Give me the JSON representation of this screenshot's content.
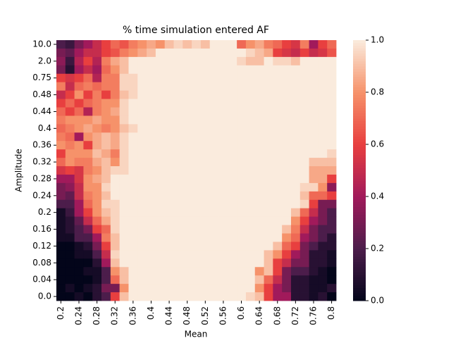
{
  "chart_data": {
    "type": "heatmap",
    "title": "% time simulation entered AF",
    "x_label": "Mean",
    "y_label": "Amplitude",
    "x": [
      "0.2",
      null,
      "0.24",
      null,
      "0.28",
      null,
      "0.32",
      null,
      "0.36",
      null,
      "0.4",
      null,
      "0.44",
      null,
      "0.48",
      null,
      "0.52",
      null,
      "0.56",
      null,
      "0.6",
      null,
      "0.64",
      null,
      "0.68",
      null,
      "0.72",
      null,
      "0.76",
      null,
      "0.8"
    ],
    "y": [
      "10.0",
      null,
      "2.0",
      null,
      "0.75",
      null,
      "0.48",
      null,
      "0.44",
      null,
      "0.4",
      null,
      "0.36",
      null,
      "0.32",
      null,
      "0.28",
      null,
      "0.24",
      null,
      "0.2",
      null,
      "0.16",
      null,
      "0.12",
      null,
      "0.08",
      null,
      "0.04",
      null,
      "0.0"
    ],
    "colors": [
      "#03051a",
      "#4c1d4b",
      "#a11a5b",
      "#e83f3f",
      "#f6926a",
      "#faebdd"
    ],
    "clim": [
      0,
      1
    ],
    "cticks": [
      {
        "value": 0,
        "label": "0.0"
      },
      0.2,
      0.4,
      0.6,
      0.8,
      {
        "value": 1,
        "label": "1.0"
      }
    ],
    "z": [
      [
        0.2,
        0.15,
        0.3,
        0.4,
        0.5,
        0.6,
        0.7,
        0.65,
        0.75,
        0.8,
        0.85,
        0.8,
        0.9,
        0.95,
        0.9,
        0.95,
        0.9,
        1,
        1,
        1,
        0.7,
        0.8,
        0.85,
        0.75,
        0.7,
        0.6,
        0.55,
        0.75,
        0.4,
        0.6,
        0.7
      ],
      [
        0.3,
        0.25,
        0.4,
        0.5,
        0.5,
        0.6,
        0.65,
        0.75,
        0.8,
        0.85,
        0.9,
        1,
        1,
        1,
        1,
        1,
        1,
        1,
        1,
        1,
        1,
        0.95,
        0.9,
        0.85,
        0.6,
        0.55,
        0.5,
        0.6,
        0.5,
        0.55,
        0.65
      ],
      [
        0.35,
        0.15,
        0.45,
        0.6,
        0.45,
        0.75,
        0.85,
        0.9,
        1,
        1,
        1,
        1,
        1,
        1,
        1,
        1,
        1,
        1,
        1,
        1,
        0.95,
        0.9,
        0.9,
        1,
        0.95,
        0.95,
        0.9,
        1,
        1,
        1,
        1
      ],
      [
        0.3,
        0.1,
        0.4,
        0.5,
        0.4,
        0.7,
        0.8,
        0.9,
        1,
        1,
        1,
        1,
        1,
        1,
        1,
        1,
        1,
        1,
        1,
        1,
        1,
        1,
        1,
        1,
        1,
        1,
        1,
        1,
        1,
        1,
        1
      ],
      [
        0.6,
        0.55,
        0.6,
        0.7,
        0.45,
        0.75,
        0.75,
        0.95,
        0.95,
        1,
        1,
        1,
        1,
        1,
        1,
        1,
        1,
        1,
        1,
        1,
        1,
        1,
        1,
        1,
        1,
        1,
        1,
        1,
        1,
        1,
        1
      ],
      [
        0.75,
        0.5,
        0.7,
        0.75,
        0.7,
        0.75,
        0.75,
        0.95,
        0.95,
        1,
        1,
        1,
        1,
        1,
        1,
        1,
        1,
        1,
        1,
        1,
        1,
        1,
        1,
        1,
        1,
        1,
        1,
        1,
        1,
        1,
        1
      ],
      [
        0.5,
        0.6,
        0.8,
        0.6,
        0.75,
        0.6,
        0.75,
        0.9,
        0.95,
        1,
        1,
        1,
        1,
        1,
        1,
        1,
        1,
        1,
        1,
        1,
        1,
        1,
        1,
        1,
        1,
        1,
        1,
        1,
        1,
        1,
        1
      ],
      [
        0.6,
        0.7,
        0.6,
        0.7,
        0.75,
        0.8,
        0.8,
        0.95,
        1,
        1,
        1,
        1,
        1,
        1,
        1,
        1,
        1,
        1,
        1,
        1,
        1,
        1,
        1,
        1,
        1,
        1,
        1,
        1,
        1,
        1,
        1
      ],
      [
        0.7,
        0.6,
        0.7,
        0.45,
        0.75,
        0.8,
        0.85,
        0.95,
        1,
        1,
        1,
        1,
        1,
        1,
        1,
        1,
        1,
        1,
        1,
        1,
        1,
        1,
        1,
        1,
        1,
        1,
        1,
        1,
        1,
        1,
        1
      ],
      [
        0.75,
        0.8,
        0.8,
        0.8,
        0.85,
        0.8,
        0.8,
        0.95,
        1,
        1,
        1,
        1,
        1,
        1,
        1,
        1,
        1,
        1,
        1,
        1,
        1,
        1,
        1,
        1,
        1,
        1,
        1,
        1,
        1,
        1,
        1
      ],
      [
        0.7,
        0.75,
        0.8,
        0.85,
        0.8,
        0.75,
        0.8,
        0.9,
        0.95,
        1,
        1,
        1,
        1,
        1,
        1,
        1,
        1,
        1,
        1,
        1,
        1,
        1,
        1,
        1,
        1,
        1,
        1,
        1,
        1,
        1,
        1
      ],
      [
        0.75,
        0.7,
        0.4,
        0.8,
        0.85,
        0.9,
        0.85,
        0.95,
        1,
        1,
        1,
        1,
        1,
        1,
        1,
        1,
        1,
        1,
        1,
        1,
        1,
        1,
        1,
        1,
        1,
        1,
        1,
        1,
        1,
        1,
        1
      ],
      [
        0.8,
        0.75,
        0.8,
        0.6,
        0.85,
        0.9,
        0.85,
        0.95,
        1,
        1,
        1,
        1,
        1,
        1,
        1,
        1,
        1,
        1,
        1,
        1,
        1,
        1,
        1,
        1,
        1,
        1,
        1,
        1,
        1,
        1,
        1
      ],
      [
        0.6,
        0.8,
        0.8,
        0.8,
        0.9,
        0.85,
        0.75,
        0.95,
        1,
        1,
        1,
        1,
        1,
        1,
        1,
        1,
        1,
        1,
        1,
        1,
        1,
        1,
        1,
        1,
        1,
        1,
        1,
        1,
        1,
        1,
        0.95
      ],
      [
        0.7,
        0.8,
        0.75,
        0.75,
        0.85,
        0.9,
        0.8,
        0.95,
        1,
        1,
        1,
        1,
        1,
        1,
        1,
        1,
        1,
        1,
        1,
        1,
        1,
        1,
        1,
        1,
        1,
        1,
        1,
        1,
        0.9,
        0.9,
        0.9
      ],
      [
        0.55,
        0.6,
        0.55,
        0.75,
        0.8,
        0.9,
        0.95,
        0.95,
        1,
        1,
        1,
        1,
        1,
        1,
        1,
        1,
        1,
        1,
        1,
        1,
        1,
        1,
        1,
        1,
        1,
        1,
        1,
        1,
        0.85,
        0.85,
        0.85
      ],
      [
        0.4,
        0.4,
        0.55,
        0.8,
        0.85,
        0.9,
        1,
        1,
        1,
        1,
        1,
        1,
        1,
        1,
        1,
        1,
        1,
        1,
        1,
        1,
        1,
        1,
        1,
        1,
        1,
        1,
        1,
        1,
        0.85,
        0.85,
        0.6
      ],
      [
        0.3,
        0.35,
        0.5,
        0.8,
        0.8,
        0.95,
        1,
        1,
        1,
        1,
        1,
        1,
        1,
        1,
        1,
        1,
        1,
        1,
        1,
        1,
        1,
        1,
        1,
        1,
        1,
        1,
        1,
        0.95,
        0.95,
        0.8,
        0.35
      ],
      [
        0.3,
        0.25,
        0.5,
        0.75,
        0.8,
        0.9,
        1,
        1,
        1,
        1,
        1,
        1,
        1,
        1,
        1,
        1,
        1,
        1,
        1,
        1,
        1,
        1,
        1,
        1,
        1,
        1,
        1,
        0.9,
        0.7,
        0.7,
        0.6
      ],
      [
        0.2,
        0.2,
        0.4,
        0.7,
        0.8,
        0.95,
        0.95,
        1,
        1,
        1,
        1,
        1,
        1,
        1,
        1,
        1,
        1,
        1,
        1,
        1,
        1,
        1,
        1,
        1,
        1,
        1,
        1,
        0.95,
        0.6,
        0.3,
        0.3
      ],
      [
        0.05,
        0.15,
        0.4,
        0.6,
        0.8,
        0.9,
        0.95,
        1,
        1,
        1,
        1,
        1,
        1,
        1,
        1,
        1,
        1,
        1,
        1,
        1,
        1,
        1,
        1,
        1,
        1,
        1,
        0.9,
        0.7,
        0.5,
        0.3,
        0.2
      ],
      [
        0.05,
        0.1,
        0.25,
        0.5,
        0.7,
        0.85,
        0.95,
        1,
        1,
        1,
        1,
        1,
        1,
        1,
        1,
        1,
        1,
        1,
        1,
        1,
        1,
        1,
        1,
        1,
        1,
        1,
        0.8,
        0.6,
        0.4,
        0.3,
        0.2
      ],
      [
        0.05,
        0.1,
        0.2,
        0.3,
        0.6,
        0.7,
        0.95,
        1,
        1,
        1,
        1,
        1,
        1,
        1,
        1,
        1,
        1,
        1,
        1,
        1,
        1,
        1,
        1,
        1,
        1,
        0.9,
        0.75,
        0.5,
        0.3,
        0.2,
        0.2
      ],
      [
        0.05,
        0.05,
        0.2,
        0.2,
        0.4,
        0.75,
        0.9,
        1,
        1,
        1,
        1,
        1,
        1,
        1,
        1,
        1,
        1,
        1,
        1,
        1,
        1,
        1,
        1,
        1,
        1,
        0.8,
        0.7,
        0.4,
        0.3,
        0.2,
        0.1
      ],
      [
        0,
        0,
        0.05,
        0.1,
        0.3,
        0.6,
        0.9,
        1,
        1,
        1,
        1,
        1,
        1,
        1,
        1,
        1,
        1,
        1,
        1,
        1,
        1,
        1,
        1,
        1,
        0.9,
        0.7,
        0.6,
        0.3,
        0.2,
        0.1,
        0.1
      ],
      [
        0,
        0,
        0.05,
        0.05,
        0.2,
        0.5,
        0.95,
        1,
        1,
        1,
        1,
        1,
        1,
        1,
        1,
        1,
        1,
        1,
        1,
        1,
        1,
        1,
        1,
        0.9,
        0.8,
        0.6,
        0.4,
        0.3,
        0.1,
        0.1,
        0.05
      ],
      [
        0,
        0,
        0,
        0,
        0.1,
        0.4,
        0.9,
        1,
        1,
        1,
        1,
        1,
        1,
        1,
        1,
        1,
        1,
        1,
        1,
        1,
        1,
        1,
        1,
        0.9,
        0.6,
        0.5,
        0.3,
        0.3,
        0.1,
        0.1,
        0.05
      ],
      [
        0,
        0,
        0,
        0.05,
        0.05,
        0.2,
        0.8,
        0.9,
        1,
        1,
        1,
        1,
        1,
        1,
        1,
        1,
        1,
        1,
        1,
        1,
        1,
        1,
        0.8,
        0.9,
        0.6,
        0.3,
        0.2,
        0.2,
        0.1,
        0.05,
        0
      ],
      [
        0,
        0,
        0,
        0,
        0.05,
        0.2,
        0.7,
        0.9,
        1,
        1,
        1,
        1,
        1,
        1,
        1,
        1,
        1,
        1,
        1,
        1,
        1,
        1,
        0.9,
        0.7,
        0.5,
        0.3,
        0.1,
        0.1,
        0.05,
        0.05,
        0
      ],
      [
        0,
        0.05,
        0,
        0.05,
        0.1,
        0.3,
        0.3,
        0.8,
        1,
        1,
        1,
        1,
        1,
        1,
        1,
        1,
        1,
        1,
        1,
        1,
        1,
        1,
        0.8,
        0.6,
        0.4,
        0.3,
        0.1,
        0.1,
        0.05,
        0.05,
        0.1
      ],
      [
        0,
        0,
        0.05,
        0,
        0.1,
        0.2,
        0.6,
        0.9,
        1,
        1,
        1,
        1,
        1,
        1,
        1,
        1,
        1,
        1,
        1,
        1,
        1,
        0.95,
        0.9,
        0.6,
        0.4,
        0.4,
        0.1,
        0.1,
        0.05,
        0.1,
        0
      ]
    ]
  }
}
